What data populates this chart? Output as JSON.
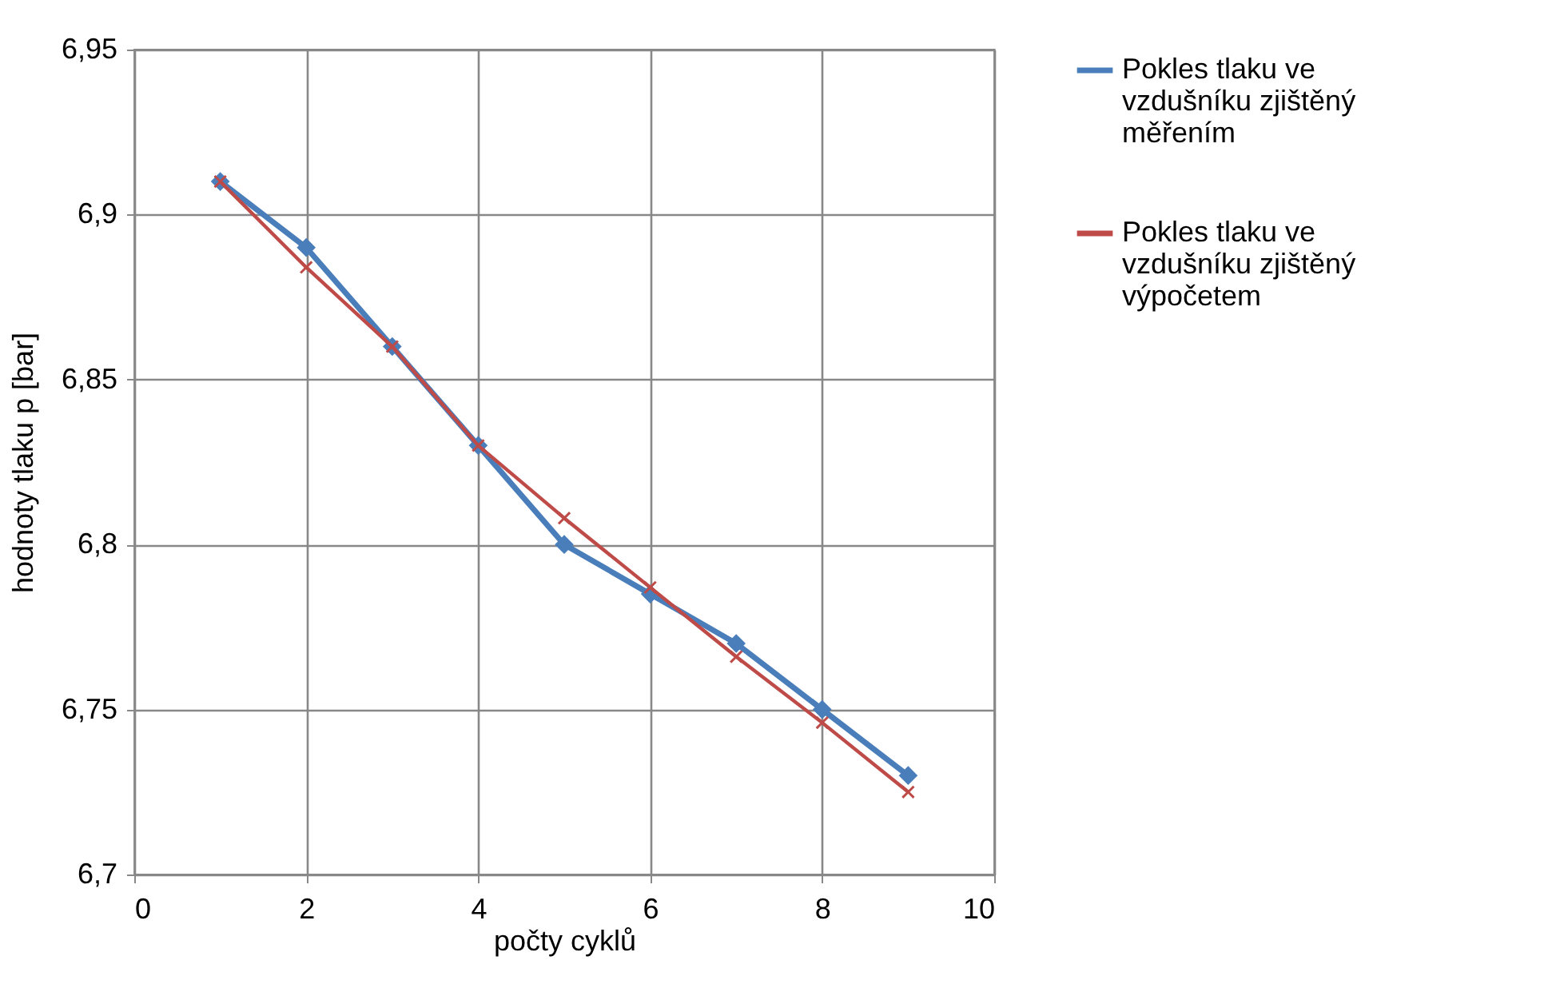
{
  "chart_data": {
    "type": "line",
    "xlabel": "počty cyklů",
    "ylabel": "hodnoty tlaku p [bar]",
    "xlim": [
      0,
      10
    ],
    "xticks": [
      0,
      2,
      4,
      6,
      8,
      10
    ],
    "ylim": [
      6.7,
      6.95
    ],
    "yticks": [
      {
        "value": 6.7,
        "label": "6,7"
      },
      {
        "value": 6.75,
        "label": "6,75"
      },
      {
        "value": 6.8,
        "label": "6,8"
      },
      {
        "value": 6.85,
        "label": "6,85"
      },
      {
        "value": 6.9,
        "label": "6,9"
      },
      {
        "value": 6.95,
        "label": "6,95"
      }
    ],
    "grid": true,
    "legend": "right",
    "series": [
      {
        "name": "Pokles tlaku ve vzdušníku zjištěný měřením",
        "color": "#4a7ebb",
        "marker": "diamond",
        "x": [
          1,
          2,
          3,
          4,
          5,
          6,
          7,
          8,
          9
        ],
        "values": [
          6.91,
          6.89,
          6.86,
          6.83,
          6.8,
          6.785,
          6.77,
          6.75,
          6.73
        ]
      },
      {
        "name": "Pokles tlaku ve vzdušníku zjištěný výpočetem",
        "color": "#be4b48",
        "marker": "cross",
        "x": [
          1,
          2,
          3,
          4,
          5,
          6,
          7,
          8,
          9
        ],
        "values": [
          6.91,
          6.884,
          6.86,
          6.83,
          6.808,
          6.787,
          6.766,
          6.746,
          6.725
        ]
      }
    ]
  }
}
